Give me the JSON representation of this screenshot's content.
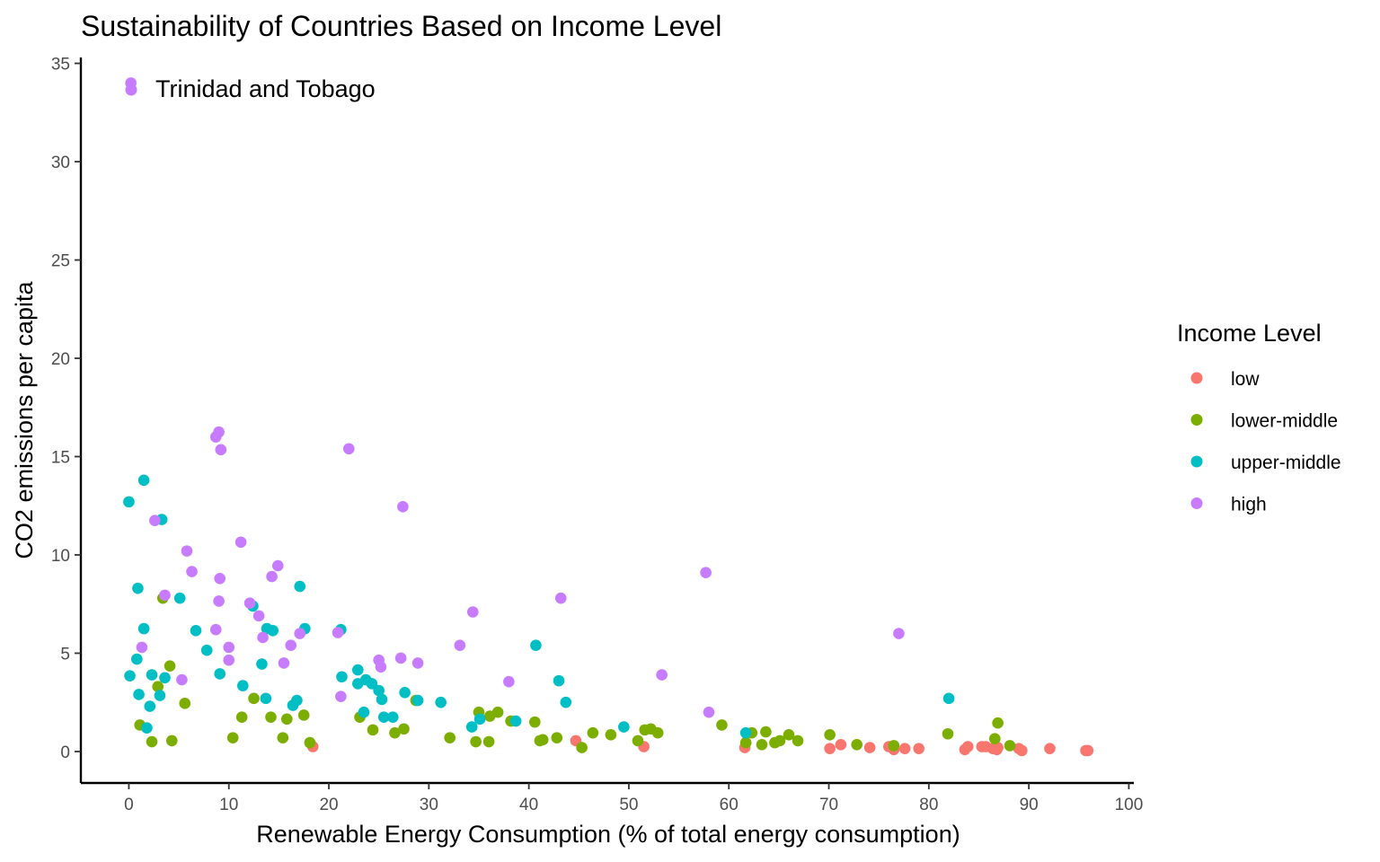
{
  "chart_data": {
    "type": "scatter",
    "title": "Sustainability of Countries Based on Income Level",
    "xlabel": "Renewable Energy Consumption (% of total energy consumption)",
    "ylabel": "CO2 emissions per capita",
    "xlim": [
      -4.8,
      100.5
    ],
    "ylim": [
      -1.6,
      35.3
    ],
    "x_ticks": [
      0,
      10,
      20,
      30,
      40,
      50,
      60,
      70,
      80,
      90,
      100
    ],
    "y_ticks": [
      0,
      5,
      10,
      15,
      20,
      25,
      30,
      35
    ],
    "grid": false,
    "legend": {
      "title": "Income Level",
      "placement": "right",
      "entries": [
        "low",
        "lower-middle",
        "upper-middle",
        "high"
      ]
    },
    "colors": {
      "low": "#F8766D",
      "lower-middle": "#7CAE00",
      "upper-middle": "#00BFC4",
      "high": "#C77CFF"
    },
    "annotation": {
      "text": "Trinidad and Tobago",
      "series": "high",
      "x": 0.2,
      "y": 34.0
    },
    "series": [
      {
        "name": "low",
        "points": [
          [
            18.4,
            0.25
          ],
          [
            44.7,
            0.55
          ],
          [
            51.5,
            0.25
          ],
          [
            61.6,
            0.2
          ],
          [
            70.1,
            0.15
          ],
          [
            71.2,
            0.35
          ],
          [
            74.1,
            0.2
          ],
          [
            76.0,
            0.25
          ],
          [
            76.5,
            0.1
          ],
          [
            77.6,
            0.15
          ],
          [
            79.0,
            0.15
          ],
          [
            83.6,
            0.1
          ],
          [
            83.9,
            0.25
          ],
          [
            85.3,
            0.25
          ],
          [
            85.7,
            0.25
          ],
          [
            86.4,
            0.15
          ],
          [
            86.8,
            0.1
          ],
          [
            86.9,
            0.2
          ],
          [
            89.0,
            0.15
          ],
          [
            89.3,
            0.05
          ],
          [
            92.1,
            0.15
          ],
          [
            95.7,
            0.05
          ],
          [
            95.9,
            0.05
          ]
        ]
      },
      {
        "name": "lower-middle",
        "points": [
          [
            1.1,
            1.35
          ],
          [
            2.3,
            0.5
          ],
          [
            2.9,
            3.3
          ],
          [
            3.4,
            7.8
          ],
          [
            4.1,
            4.35
          ],
          [
            4.3,
            0.55
          ],
          [
            5.6,
            2.45
          ],
          [
            10.4,
            0.7
          ],
          [
            11.3,
            1.75
          ],
          [
            12.5,
            2.7
          ],
          [
            14.2,
            1.75
          ],
          [
            15.4,
            0.7
          ],
          [
            15.8,
            1.65
          ],
          [
            17.5,
            1.85
          ],
          [
            18.1,
            0.45
          ],
          [
            23.1,
            1.75
          ],
          [
            24.4,
            1.1
          ],
          [
            26.6,
            0.95
          ],
          [
            27.5,
            1.15
          ],
          [
            28.7,
            2.6
          ],
          [
            32.1,
            0.7
          ],
          [
            34.7,
            0.5
          ],
          [
            35.0,
            2.0
          ],
          [
            36.0,
            0.5
          ],
          [
            36.1,
            1.8
          ],
          [
            36.9,
            2.0
          ],
          [
            38.2,
            1.55
          ],
          [
            40.6,
            1.5
          ],
          [
            41.1,
            0.55
          ],
          [
            41.4,
            0.6
          ],
          [
            42.8,
            0.7
          ],
          [
            45.3,
            0.2
          ],
          [
            46.4,
            0.95
          ],
          [
            48.2,
            0.85
          ],
          [
            50.9,
            0.55
          ],
          [
            51.6,
            1.1
          ],
          [
            52.2,
            1.15
          ],
          [
            52.9,
            0.95
          ],
          [
            59.3,
            1.35
          ],
          [
            61.7,
            0.45
          ],
          [
            62.3,
            0.95
          ],
          [
            63.3,
            0.35
          ],
          [
            63.7,
            1.0
          ],
          [
            64.6,
            0.45
          ],
          [
            65.1,
            0.55
          ],
          [
            66.0,
            0.85
          ],
          [
            66.9,
            0.55
          ],
          [
            70.1,
            0.85
          ],
          [
            72.8,
            0.35
          ],
          [
            76.5,
            0.3
          ],
          [
            81.9,
            0.9
          ],
          [
            86.6,
            0.65
          ],
          [
            86.9,
            1.45
          ],
          [
            88.1,
            0.3
          ]
        ]
      },
      {
        "name": "upper-middle",
        "points": [
          [
            0.0,
            12.7
          ],
          [
            0.1,
            3.85
          ],
          [
            0.8,
            4.7
          ],
          [
            0.9,
            8.3
          ],
          [
            1.0,
            2.9
          ],
          [
            1.5,
            13.8
          ],
          [
            1.5,
            6.25
          ],
          [
            1.8,
            1.2
          ],
          [
            2.1,
            2.3
          ],
          [
            2.3,
            3.9
          ],
          [
            3.1,
            2.85
          ],
          [
            3.3,
            11.8
          ],
          [
            3.6,
            3.75
          ],
          [
            5.1,
            7.8
          ],
          [
            6.7,
            6.15
          ],
          [
            7.8,
            5.15
          ],
          [
            9.1,
            3.95
          ],
          [
            11.4,
            3.35
          ],
          [
            12.4,
            7.4
          ],
          [
            13.3,
            4.45
          ],
          [
            13.7,
            2.7
          ],
          [
            13.8,
            6.25
          ],
          [
            14.4,
            6.15
          ],
          [
            16.4,
            2.35
          ],
          [
            16.8,
            2.6
          ],
          [
            17.1,
            8.4
          ],
          [
            17.6,
            6.25
          ],
          [
            21.2,
            6.2
          ],
          [
            21.3,
            3.8
          ],
          [
            22.9,
            4.15
          ],
          [
            22.9,
            3.45
          ],
          [
            23.5,
            2.0
          ],
          [
            23.7,
            3.65
          ],
          [
            24.3,
            3.45
          ],
          [
            25.0,
            3.1
          ],
          [
            25.3,
            2.65
          ],
          [
            25.5,
            1.75
          ],
          [
            26.4,
            1.75
          ],
          [
            27.6,
            3.0
          ],
          [
            28.9,
            2.6
          ],
          [
            31.2,
            2.5
          ],
          [
            34.3,
            1.25
          ],
          [
            35.1,
            1.65
          ],
          [
            38.7,
            1.55
          ],
          [
            40.7,
            5.4
          ],
          [
            43.0,
            3.6
          ],
          [
            43.7,
            2.5
          ],
          [
            49.5,
            1.25
          ],
          [
            61.7,
            0.95
          ],
          [
            82.0,
            2.7
          ]
        ]
      },
      {
        "name": "high",
        "points": [
          [
            1.3,
            5.3
          ],
          [
            2.6,
            11.75
          ],
          [
            3.6,
            7.95
          ],
          [
            5.3,
            3.65
          ],
          [
            5.8,
            10.2
          ],
          [
            6.3,
            9.15
          ],
          [
            8.7,
            16.0
          ],
          [
            8.7,
            6.2
          ],
          [
            9.0,
            16.25
          ],
          [
            9.0,
            7.65
          ],
          [
            9.2,
            15.35
          ],
          [
            9.1,
            8.8
          ],
          [
            10.0,
            5.3
          ],
          [
            10.0,
            4.65
          ],
          [
            11.2,
            10.65
          ],
          [
            12.1,
            7.55
          ],
          [
            13.0,
            6.9
          ],
          [
            13.4,
            5.8
          ],
          [
            14.3,
            8.9
          ],
          [
            14.9,
            9.45
          ],
          [
            15.5,
            4.5
          ],
          [
            16.2,
            5.4
          ],
          [
            17.1,
            6.0
          ],
          [
            20.9,
            6.05
          ],
          [
            21.2,
            2.8
          ],
          [
            22.0,
            15.4
          ],
          [
            25.0,
            4.65
          ],
          [
            25.2,
            4.3
          ],
          [
            27.2,
            4.75
          ],
          [
            27.4,
            12.45
          ],
          [
            28.9,
            4.5
          ],
          [
            33.1,
            5.4
          ],
          [
            34.4,
            7.1
          ],
          [
            38.0,
            3.55
          ],
          [
            43.2,
            7.8
          ],
          [
            53.3,
            3.9
          ],
          [
            57.7,
            9.1
          ],
          [
            58.0,
            2.0
          ],
          [
            77.0,
            6.0
          ],
          [
            0.2,
            34.0
          ]
        ]
      }
    ]
  }
}
